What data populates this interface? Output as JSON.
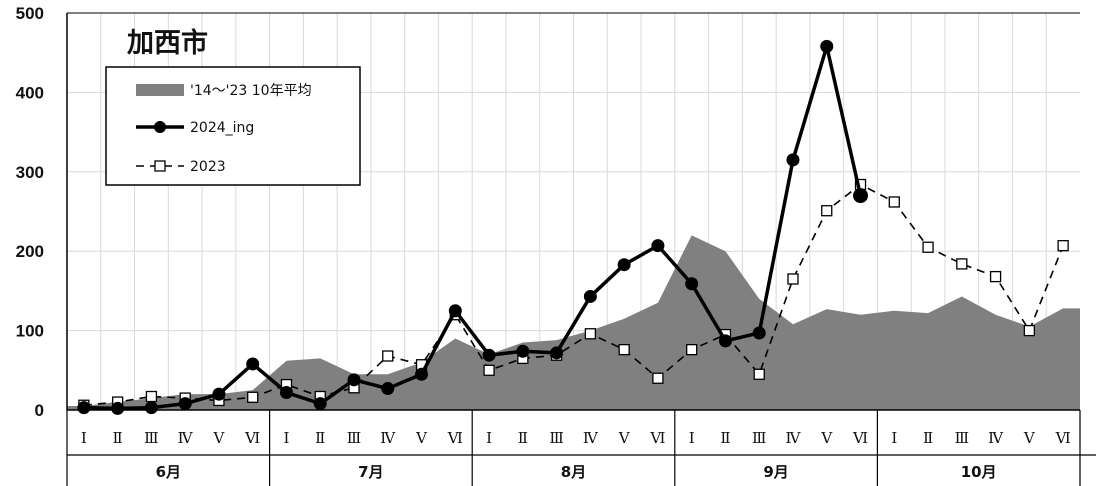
{
  "chart_data": {
    "type": "line",
    "title": "加西市",
    "ylim": [
      0,
      500
    ],
    "yticks": [
      "0",
      "100",
      "200",
      "300",
      "400",
      "500"
    ],
    "grid": true,
    "legend_position": "top-left",
    "period_labels": [
      "Ⅰ",
      "Ⅱ",
      "Ⅲ",
      "Ⅳ",
      "Ⅴ",
      "Ⅵ"
    ],
    "months": [
      "6月",
      "7月",
      "8月",
      "9月",
      "10月"
    ],
    "series": [
      {
        "name": "'14～'23 10年平均",
        "style": "area",
        "color": "#808080",
        "values": [
          5,
          10,
          15,
          20,
          20,
          25,
          62,
          65,
          45,
          45,
          60,
          90,
          70,
          85,
          88,
          100,
          115,
          135,
          220,
          200,
          140,
          108,
          127,
          120,
          125,
          122,
          143,
          120,
          105,
          128
        ]
      },
      {
        "name": "2024_ing",
        "style": "line-filled-circle",
        "color": "#000000",
        "values": [
          3,
          2,
          3,
          8,
          20,
          58,
          22,
          8,
          38,
          27,
          45,
          125,
          69,
          74,
          72,
          143,
          183,
          207,
          159,
          87,
          97,
          315,
          458,
          270
        ]
      },
      {
        "name": "2023",
        "style": "dashed-open-square",
        "color": "#000000",
        "values": [
          6,
          10,
          17,
          15,
          12,
          16,
          32,
          17,
          28,
          68,
          57,
          120,
          50,
          65,
          69,
          96,
          76,
          40,
          76,
          95,
          45,
          165,
          251,
          284,
          262,
          205,
          184,
          168,
          100,
          207
        ]
      }
    ]
  }
}
